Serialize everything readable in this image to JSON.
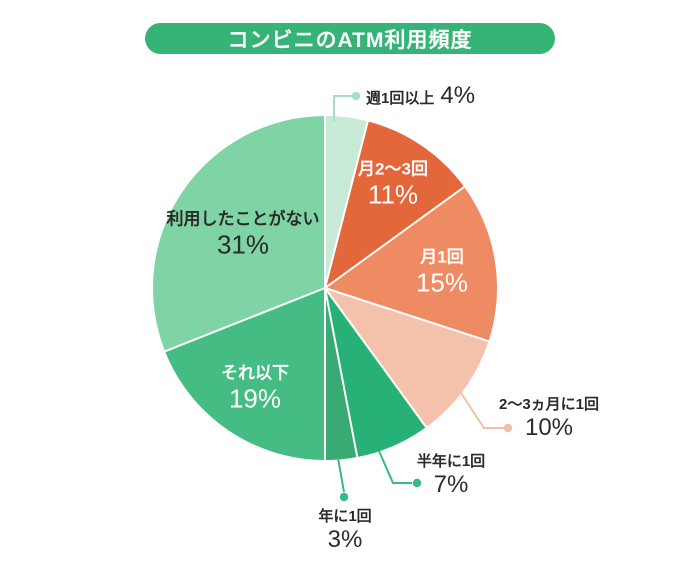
{
  "title": "コンビニのATM利用頻度",
  "colors": {
    "background": "#ffffff",
    "title_bg": "#36b478",
    "title_text": "#ffffff",
    "text_dark": "#2b2b2b",
    "text_light": "#ffffff",
    "separator": "#ffffff"
  },
  "chart_data": {
    "type": "pie",
    "title": "コンビニのATM利用頻度",
    "unit": "%",
    "start_angle_deg": 0,
    "direction": "clockwise",
    "legend_position": "none",
    "slices": [
      {
        "label": "週1回以上",
        "value": 4,
        "pct_label": "4%",
        "color": "#c7ead7",
        "leader_color": "#a6ddc3",
        "label_color": "#2b2b2b",
        "label_placement": "outside-top"
      },
      {
        "label": "月2〜3回",
        "value": 11,
        "pct_label": "11%",
        "color": "#e4673c",
        "label_color": "#ffffff",
        "label_placement": "inside"
      },
      {
        "label": "月1回",
        "value": 15,
        "pct_label": "15%",
        "color": "#ee8b63",
        "label_color": "#ffffff",
        "label_placement": "inside"
      },
      {
        "label": "2〜3ヵ月に1回",
        "value": 10,
        "pct_label": "10%",
        "color": "#f4c2aa",
        "leader_color": "#f2c0a6",
        "label_color": "#2b2b2b",
        "label_placement": "outside-right"
      },
      {
        "label": "半年に1回",
        "value": 7,
        "pct_label": "7%",
        "color": "#28b176",
        "leader_color": "#38b97f",
        "label_color": "#2b2b2b",
        "label_placement": "outside-bottom"
      },
      {
        "label": "年に1回",
        "value": 3,
        "pct_label": "3%",
        "color": "#39aa73",
        "leader_color": "#38b97f",
        "label_color": "#2b2b2b",
        "label_placement": "outside-bottom"
      },
      {
        "label": "それ以下",
        "value": 19,
        "pct_label": "19%",
        "color": "#45bc84",
        "label_color": "#ffffff",
        "label_placement": "inside"
      },
      {
        "label": "利用したことがない",
        "value": 31,
        "pct_label": "31%",
        "color": "#7fd4a6",
        "label_color": "#2b2b2b",
        "label_placement": "inside"
      }
    ]
  }
}
